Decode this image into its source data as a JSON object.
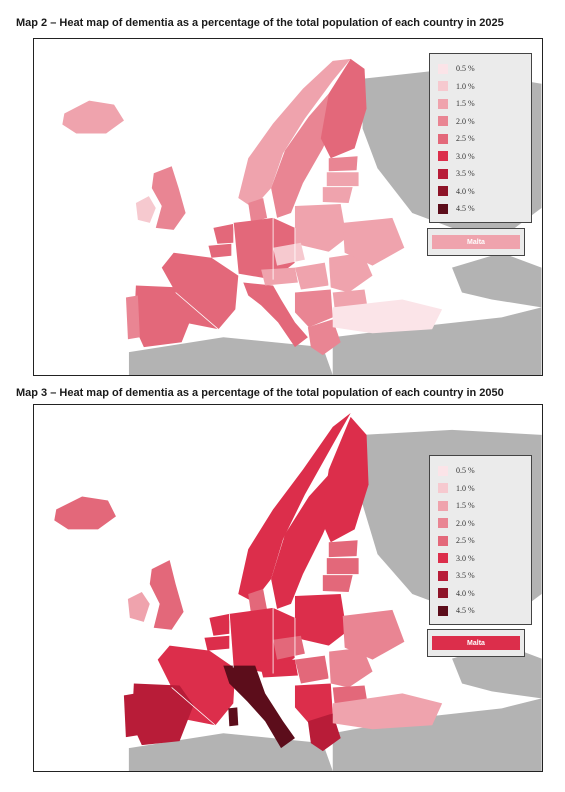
{
  "map2": {
    "title": "Map 2 – Heat map of dementia as a percentage of the total population of each country in 2025",
    "legend": [
      {
        "label": "0.5 %",
        "color": "#fbe4e8"
      },
      {
        "label": "1.0 %",
        "color": "#f6c9cf"
      },
      {
        "label": "1.5 %",
        "color": "#efa3ad"
      },
      {
        "label": "2.0 %",
        "color": "#e98593"
      },
      {
        "label": "2.5 %",
        "color": "#e3687a"
      },
      {
        "label": "3.0 %",
        "color": "#dc2e4b"
      },
      {
        "label": "3.5 %",
        "color": "#b81c38"
      },
      {
        "label": "4.0 %",
        "color": "#8e1428"
      },
      {
        "label": "4.5 %",
        "color": "#5c0d1b"
      }
    ],
    "malta_label": "Malta",
    "malta_color": "#efa3ad"
  },
  "map3": {
    "title": "Map 3 – Heat map of dementia as a percentage of the total population of each country in 2050",
    "legend": [
      {
        "label": "0.5 %",
        "color": "#fbe4e8"
      },
      {
        "label": "1.0 %",
        "color": "#f6c9cf"
      },
      {
        "label": "1.5 %",
        "color": "#efa3ad"
      },
      {
        "label": "2.0 %",
        "color": "#e98593"
      },
      {
        "label": "2.5 %",
        "color": "#e3687a"
      },
      {
        "label": "3.0 %",
        "color": "#dc2e4b"
      },
      {
        "label": "3.5 %",
        "color": "#b81c38"
      },
      {
        "label": "4.0 %",
        "color": "#8e1428"
      },
      {
        "label": "4.5 %",
        "color": "#5c0d1b"
      }
    ],
    "malta_label": "Malta",
    "malta_color": "#dc2e4b"
  }
}
